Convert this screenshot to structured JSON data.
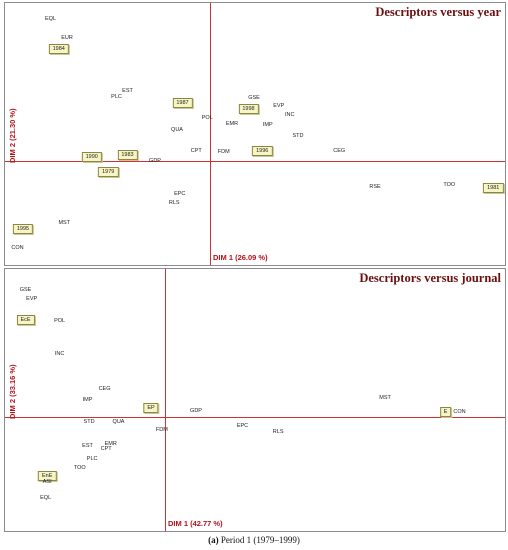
{
  "caption": {
    "prefix": "(a)",
    "text": "Period 1 (1979–1999)"
  },
  "chart_data": [
    {
      "type": "scatter",
      "title": "Descriptors versus year",
      "xlabel": "DIM 1 (26.09 %)",
      "ylabel": "DIM 2 (21.30 %)",
      "points": [
        {
          "label": "EQL",
          "x": -0.58,
          "y": 0.95,
          "kind": "descriptor"
        },
        {
          "label": "EUR",
          "x": -0.52,
          "y": 0.82,
          "kind": "descriptor"
        },
        {
          "label": "1984",
          "x": -0.55,
          "y": 0.75,
          "kind": "year"
        },
        {
          "label": "EST",
          "x": -0.3,
          "y": 0.47,
          "kind": "descriptor"
        },
        {
          "label": "PLC",
          "x": -0.34,
          "y": 0.43,
          "kind": "descriptor"
        },
        {
          "label": "1987",
          "x": -0.1,
          "y": 0.39,
          "kind": "year"
        },
        {
          "label": "GSE",
          "x": 0.16,
          "y": 0.42,
          "kind": "descriptor"
        },
        {
          "label": "1998",
          "x": 0.14,
          "y": 0.35,
          "kind": "year"
        },
        {
          "label": "EVP",
          "x": 0.25,
          "y": 0.37,
          "kind": "descriptor"
        },
        {
          "label": "POL",
          "x": -0.01,
          "y": 0.29,
          "kind": "descriptor"
        },
        {
          "label": "INC",
          "x": 0.29,
          "y": 0.31,
          "kind": "descriptor"
        },
        {
          "label": "EMR",
          "x": 0.08,
          "y": 0.25,
          "kind": "descriptor"
        },
        {
          "label": "IMP",
          "x": 0.21,
          "y": 0.24,
          "kind": "descriptor"
        },
        {
          "label": "QUA",
          "x": -0.12,
          "y": 0.21,
          "kind": "descriptor"
        },
        {
          "label": "STD",
          "x": 0.32,
          "y": 0.17,
          "kind": "descriptor"
        },
        {
          "label": "CPT",
          "x": -0.05,
          "y": 0.07,
          "kind": "descriptor"
        },
        {
          "label": "FDM",
          "x": 0.05,
          "y": 0.06,
          "kind": "descriptor"
        },
        {
          "label": "1996",
          "x": 0.19,
          "y": 0.07,
          "kind": "year"
        },
        {
          "label": "CEG",
          "x": 0.47,
          "y": 0.07,
          "kind": "descriptor"
        },
        {
          "label": "1990",
          "x": -0.43,
          "y": 0.03,
          "kind": "year"
        },
        {
          "label": "1983",
          "x": -0.3,
          "y": 0.04,
          "kind": "year"
        },
        {
          "label": "GDP",
          "x": -0.2,
          "y": 0.0,
          "kind": "descriptor"
        },
        {
          "label": "1979",
          "x": -0.37,
          "y": -0.07,
          "kind": "year"
        },
        {
          "label": "RSE",
          "x": 0.6,
          "y": -0.17,
          "kind": "descriptor"
        },
        {
          "label": "TOO",
          "x": 0.87,
          "y": -0.16,
          "kind": "descriptor"
        },
        {
          "label": "1981",
          "x": 1.03,
          "y": -0.18,
          "kind": "year"
        },
        {
          "label": "EPC",
          "x": -0.11,
          "y": -0.22,
          "kind": "descriptor"
        },
        {
          "label": "RLS",
          "x": -0.13,
          "y": -0.28,
          "kind": "descriptor"
        },
        {
          "label": "MST",
          "x": -0.53,
          "y": -0.41,
          "kind": "descriptor"
        },
        {
          "label": "1995",
          "x": -0.68,
          "y": -0.45,
          "kind": "year"
        },
        {
          "label": "CON",
          "x": -0.7,
          "y": -0.58,
          "kind": "descriptor"
        }
      ]
    },
    {
      "type": "scatter",
      "title": "Descriptors versus journal",
      "xlabel": "DIM 1 (42.77 %)",
      "ylabel": "DIM 2 (33.16 %)",
      "points": [
        {
          "label": "GSE",
          "x": -0.9,
          "y": 0.99,
          "kind": "descriptor"
        },
        {
          "label": "EVP",
          "x": -0.86,
          "y": 0.92,
          "kind": "descriptor"
        },
        {
          "label": "EcE",
          "x": -0.9,
          "y": 0.76,
          "kind": "journal"
        },
        {
          "label": "POL",
          "x": -0.68,
          "y": 0.75,
          "kind": "descriptor"
        },
        {
          "label": "INC",
          "x": -0.68,
          "y": 0.49,
          "kind": "descriptor"
        },
        {
          "label": "CEG",
          "x": -0.39,
          "y": 0.22,
          "kind": "descriptor"
        },
        {
          "label": "IMP",
          "x": -0.5,
          "y": 0.13,
          "kind": "descriptor"
        },
        {
          "label": "EP",
          "x": -0.09,
          "y": 0.07,
          "kind": "journal"
        },
        {
          "label": "GDP",
          "x": 0.2,
          "y": 0.05,
          "kind": "descriptor"
        },
        {
          "label": "MST",
          "x": 1.42,
          "y": 0.15,
          "kind": "descriptor"
        },
        {
          "label": "E",
          "x": 1.81,
          "y": 0.04,
          "kind": "journal"
        },
        {
          "label": "CON",
          "x": 1.9,
          "y": 0.04,
          "kind": "descriptor"
        },
        {
          "label": "STD",
          "x": -0.49,
          "y": -0.04,
          "kind": "descriptor"
        },
        {
          "label": "QUA",
          "x": -0.3,
          "y": -0.04,
          "kind": "descriptor"
        },
        {
          "label": "FDM",
          "x": -0.02,
          "y": -0.1,
          "kind": "descriptor"
        },
        {
          "label": "EPC",
          "x": 0.5,
          "y": -0.07,
          "kind": "descriptor"
        },
        {
          "label": "RLS",
          "x": 0.73,
          "y": -0.12,
          "kind": "descriptor"
        },
        {
          "label": "EMR",
          "x": -0.35,
          "y": -0.21,
          "kind": "descriptor"
        },
        {
          "label": "EST",
          "x": -0.5,
          "y": -0.23,
          "kind": "descriptor"
        },
        {
          "label": "CPT",
          "x": -0.38,
          "y": -0.25,
          "kind": "descriptor"
        },
        {
          "label": "PLC",
          "x": -0.47,
          "y": -0.33,
          "kind": "descriptor"
        },
        {
          "label": "TOO",
          "x": -0.55,
          "y": -0.4,
          "kind": "descriptor"
        },
        {
          "label": "EnE",
          "x": -0.76,
          "y": -0.46,
          "kind": "journal"
        },
        {
          "label": "ASI",
          "x": -0.76,
          "y": -0.51,
          "kind": "descriptor"
        },
        {
          "label": "EQL",
          "x": -0.77,
          "y": -0.63,
          "kind": "descriptor"
        }
      ]
    }
  ],
  "colors": {
    "axis": "#cc3333",
    "title": "#6b1010",
    "axis_label": "#b3121a",
    "box_fill": "#f7f4c6",
    "box_border": "#8b8743"
  }
}
